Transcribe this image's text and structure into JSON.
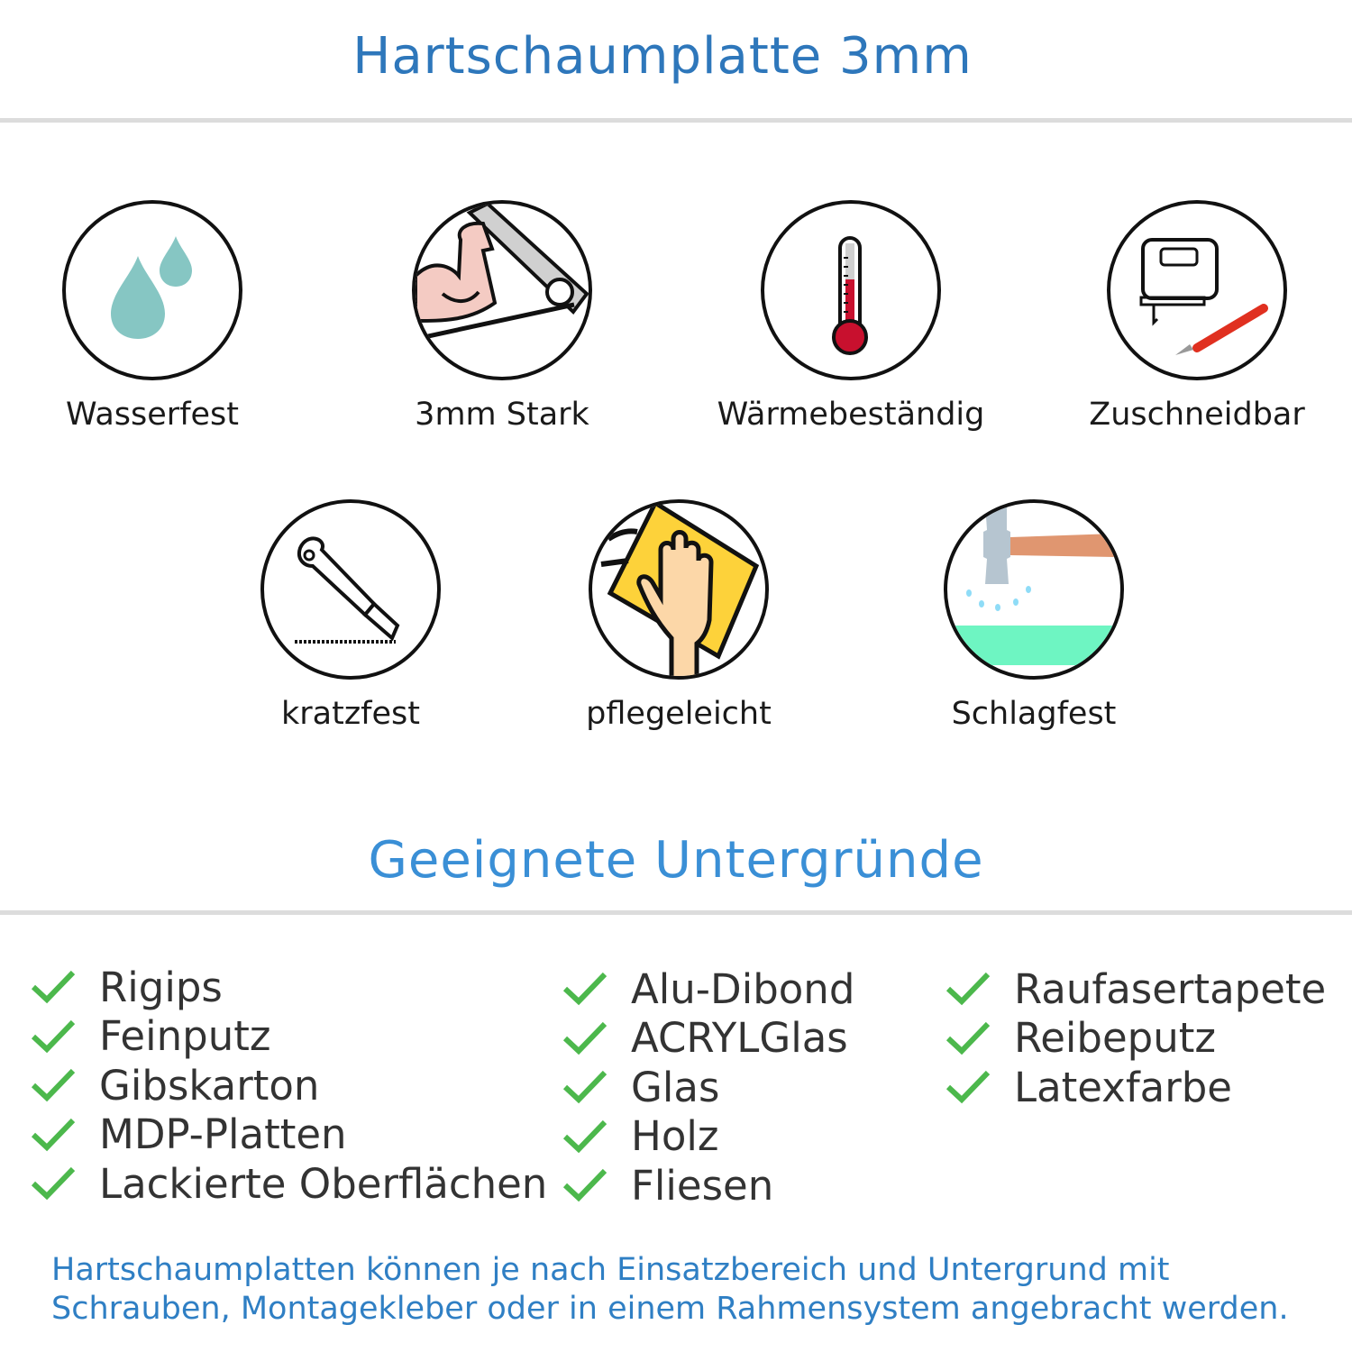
{
  "header": {
    "title": "Hartschaumplatte 3mm"
  },
  "features": [
    {
      "label": "Wasserfest",
      "icon": "water-drops-icon"
    },
    {
      "label": "3mm Stark",
      "icon": "strong-arm-icon"
    },
    {
      "label": "Wärmebeständig",
      "icon": "thermometer-icon"
    },
    {
      "label": "Zuschneidbar",
      "icon": "jigsaw-cutter-icon"
    },
    {
      "label": "kratzfest",
      "icon": "box-cutter-icon"
    },
    {
      "label": "pflegeleicht",
      "icon": "hand-sponge-icon"
    },
    {
      "label": "Schlagfest",
      "icon": "hammer-icon"
    }
  ],
  "surfaces": {
    "title": "Geeignete Untergründe",
    "columns": [
      [
        "Rigips",
        "Feinputz",
        "Gibskarton",
        "MDP-Platten",
        "Lackierte Oberflächen"
      ],
      [
        "Alu-Dibond",
        "ACRYLGlas",
        "Glas",
        "Holz",
        "Fliesen"
      ],
      [
        "Raufasertapete",
        "Reibeputz",
        "Latexfarbe"
      ]
    ],
    "check_color": "#4cb84c"
  },
  "footer": {
    "lines": [
      "Hartschaumplatten können je nach Einsatzbereich und Untergrund mit",
      "Schrauben, Montagekleber oder in einem Rahmensystem angebracht werden."
    ]
  },
  "colors": {
    "title": "#2e77bb",
    "heading": "#3a8fd6",
    "footer": "#2f7fc4"
  }
}
